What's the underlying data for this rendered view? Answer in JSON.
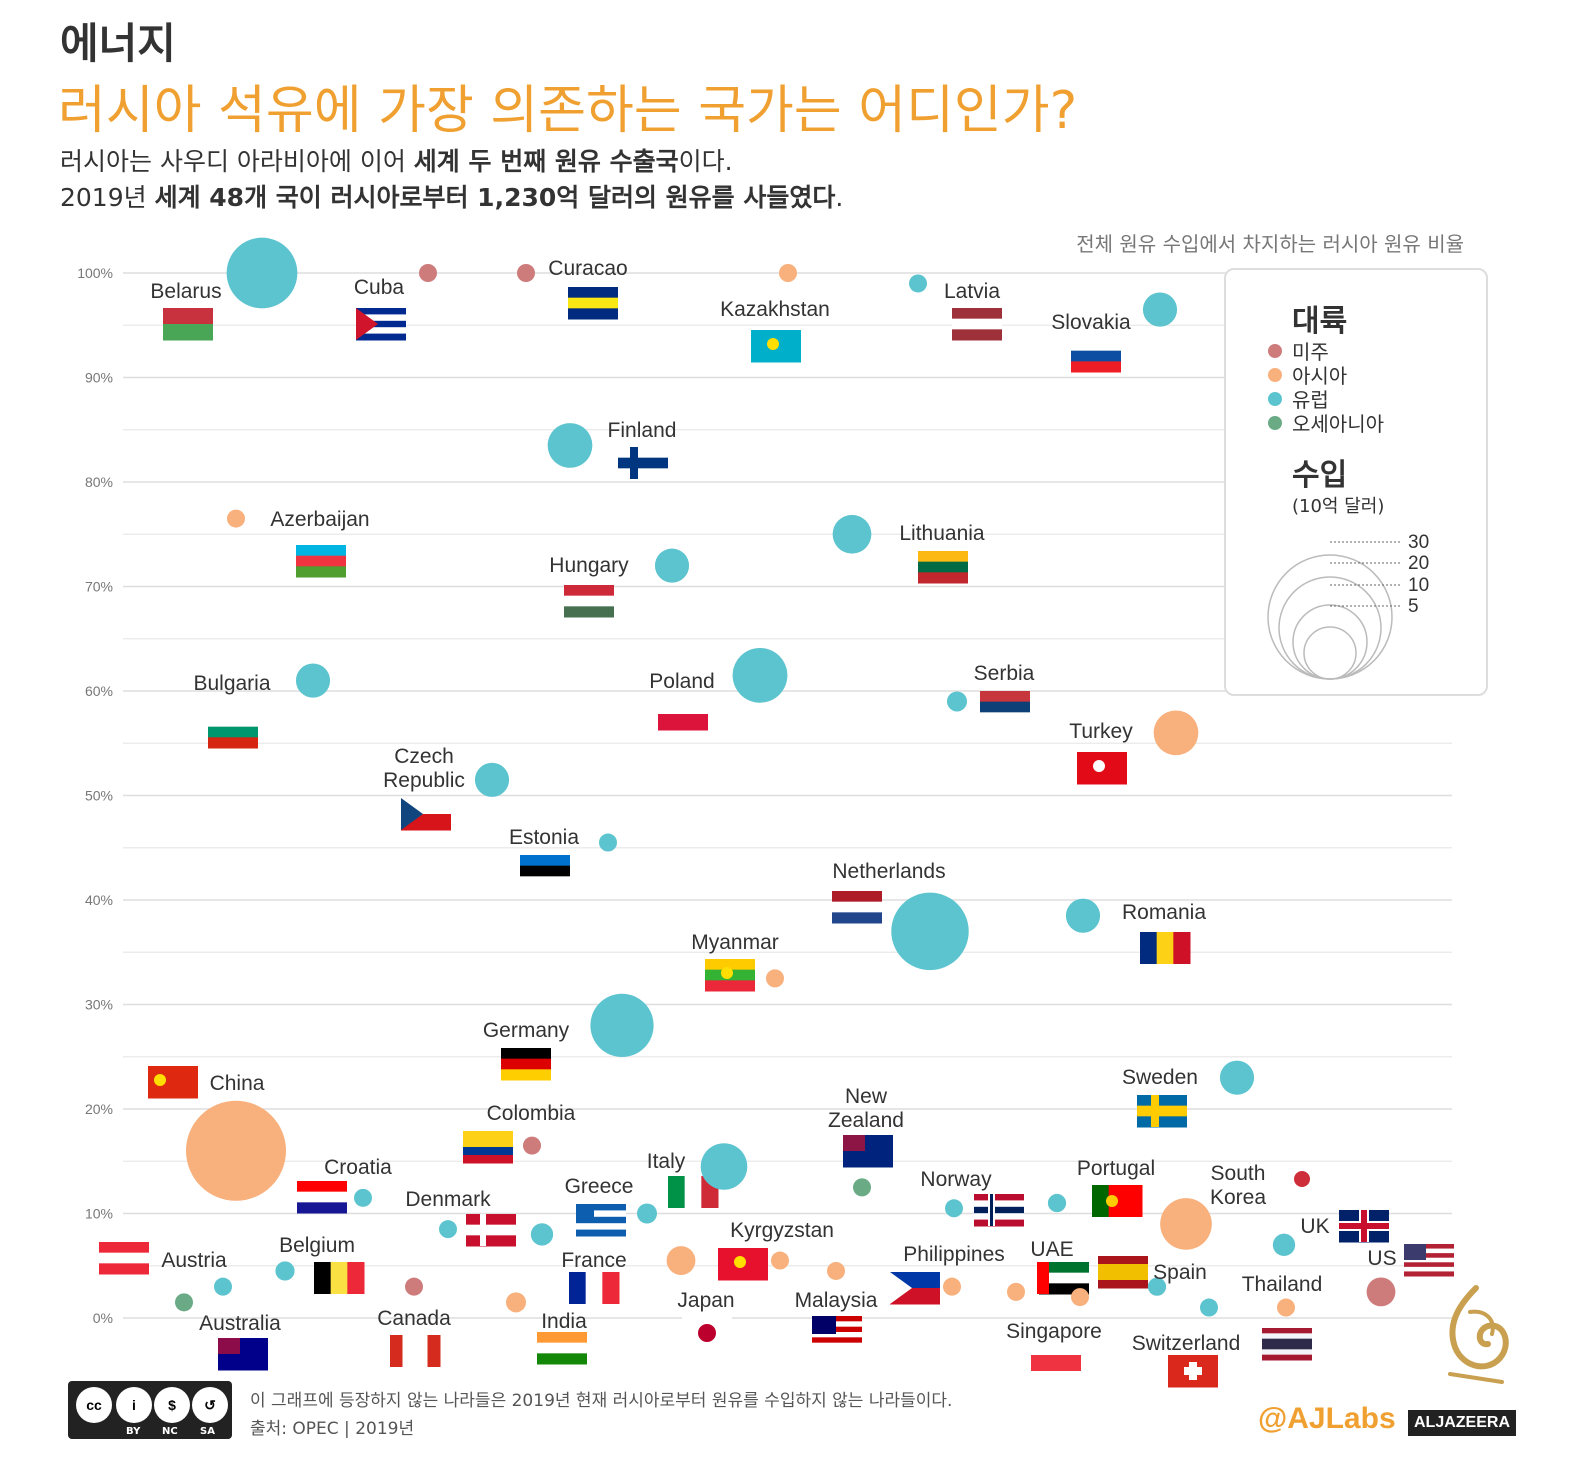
{
  "header": {
    "kicker": "에너지",
    "title": "러시아 석유에 가장 의존하는 국가는 어디인가?",
    "sub1_plain": "러시아는 사우디 아라비아에 이어 ",
    "sub1_bold": "세계 두 번째 원유 수출국",
    "sub1_end": "이다.",
    "sub2_plain": "2019년 ",
    "sub2_bold": "세계 48개 국이 러시아로부터 1,230억 달러의 원유를 사들였다",
    "sub2_end": "."
  },
  "legend": {
    "continent_title": "대륙",
    "continents": [
      {
        "label": "미주",
        "color": "#cd7b7b"
      },
      {
        "label": "아시아",
        "color": "#f8b07d"
      },
      {
        "label": "유럽",
        "color": "#5cc4cf"
      },
      {
        "label": "오세아니아",
        "color": "#6aab86"
      }
    ],
    "size_title": "수입",
    "size_unit": "(10억 달러)",
    "size_ticks": [
      "30",
      "20",
      "10",
      "5"
    ]
  },
  "footer": {
    "note": "이 그래프에 등장하지 않는 나라들은 2019년 현재 러시아로부터 원유를 수입하지 않는 나라들이다.",
    "source": "출처: OPEC | 2019년",
    "handle": "@AJLabs",
    "brand": "ALJAZEERA",
    "license": [
      "BY",
      "NC",
      "SA"
    ]
  },
  "chart_data": {
    "type": "scatter",
    "ylabel": "전체 원유 수입에서 차지하는 러시아 원유 비율",
    "ylim": [
      0,
      100
    ],
    "yticks": [
      "100%",
      "90%",
      "80%",
      "70%",
      "60%",
      "50%",
      "40%",
      "30%",
      "20%",
      "10%",
      "0%"
    ],
    "grid": true,
    "colors": {
      "americas": "#cd7b7b",
      "asia": "#f8b07d",
      "europe": "#5cc4cf",
      "oceania": "#6aab86"
    },
    "points": [
      {
        "name": "Belarus",
        "y": 100,
        "continent": "europe",
        "value": 15
      },
      {
        "name": "Cuba",
        "y": 100,
        "continent": "americas",
        "value": 0.5
      },
      {
        "name": "Curacao",
        "y": 100,
        "continent": "americas",
        "value": 0.5
      },
      {
        "name": "Kazakhstan",
        "y": 100,
        "continent": "asia",
        "value": 0.5
      },
      {
        "name": "Latvia",
        "y": 99,
        "continent": "europe",
        "value": 0.6
      },
      {
        "name": "Slovakia",
        "y": 96.5,
        "continent": "europe",
        "value": 3.5
      },
      {
        "name": "Finland",
        "y": 83.5,
        "continent": "europe",
        "value": 6
      },
      {
        "name": "Azerbaijan",
        "y": 76.5,
        "continent": "asia",
        "value": 0.7
      },
      {
        "name": "Lithuania",
        "y": 75,
        "continent": "europe",
        "value": 4.5
      },
      {
        "name": "Hungary",
        "y": 72,
        "continent": "europe",
        "value": 3.5
      },
      {
        "name": "Bulgaria",
        "y": 61,
        "continent": "europe",
        "value": 3.5
      },
      {
        "name": "Poland",
        "y": 61.5,
        "continent": "europe",
        "value": 9
      },
      {
        "name": "Serbia",
        "y": 59,
        "continent": "europe",
        "value": 1.2
      },
      {
        "name": "Turkey",
        "y": 56,
        "continent": "asia",
        "value": 6
      },
      {
        "name": "Czech Republic",
        "y": 51.5,
        "continent": "europe",
        "value": 3.5
      },
      {
        "name": "Estonia",
        "y": 45.5,
        "continent": "europe",
        "value": 0.5
      },
      {
        "name": "Netherlands",
        "y": 37,
        "continent": "europe",
        "value": 18
      },
      {
        "name": "Romania",
        "y": 38.5,
        "continent": "europe",
        "value": 3.5
      },
      {
        "name": "Myanmar",
        "y": 32.5,
        "continent": "asia",
        "value": 0.6
      },
      {
        "name": "Germany",
        "y": 28,
        "continent": "europe",
        "value": 12
      },
      {
        "name": "China",
        "y": 16,
        "continent": "asia",
        "value": 30
      },
      {
        "name": "Sweden",
        "y": 23,
        "continent": "europe",
        "value": 3.5
      },
      {
        "name": "Colombia",
        "y": 16.5,
        "continent": "americas",
        "value": 0.5
      },
      {
        "name": "New Zealand",
        "y": 12.5,
        "continent": "oceania",
        "value": 0.8
      },
      {
        "name": "Italy",
        "y": 14.5,
        "continent": "europe",
        "value": 6.5
      },
      {
        "name": "Croatia",
        "y": 11.5,
        "continent": "europe",
        "value": 0.6
      },
      {
        "name": "Norway",
        "y": 10.5,
        "continent": "europe",
        "value": 0.7
      },
      {
        "name": "Portugal",
        "y": 11,
        "continent": "europe",
        "value": 1
      },
      {
        "name": "South Korea",
        "y": 9,
        "continent": "asia",
        "value": 8
      },
      {
        "name": "Denmark",
        "y": 8.5,
        "continent": "europe",
        "value": 0.6
      },
      {
        "name": "Greece",
        "y": 10,
        "continent": "europe",
        "value": 1.2
      },
      {
        "name": "UK",
        "y": 7,
        "continent": "europe",
        "value": 1.5
      },
      {
        "name": "France",
        "y": 8,
        "continent": "europe",
        "value": 1.5
      },
      {
        "name": "Kyrgyzstan",
        "y": 5.5,
        "continent": "asia",
        "value": 0.5
      },
      {
        "name": "Austria",
        "y": 3,
        "continent": "europe",
        "value": 0.6
      },
      {
        "name": "Belgium",
        "y": 4.5,
        "continent": "europe",
        "value": 1.1
      },
      {
        "name": "Philippines",
        "y": 3,
        "continent": "asia",
        "value": 0.6
      },
      {
        "name": "UAE",
        "y": 2,
        "continent": "asia",
        "value": 0.6
      },
      {
        "name": "Spain",
        "y": 3,
        "continent": "europe",
        "value": 1
      },
      {
        "name": "Thailand",
        "y": 1,
        "continent": "asia",
        "value": 0.5
      },
      {
        "name": "US",
        "y": 2.5,
        "continent": "americas",
        "value": 2.5
      },
      {
        "name": "Australia",
        "y": 1.5,
        "continent": "oceania",
        "value": 0.6
      },
      {
        "name": "Canada",
        "y": 3,
        "continent": "americas",
        "value": 0.8
      },
      {
        "name": "India",
        "y": 1.5,
        "continent": "asia",
        "value": 1.2
      },
      {
        "name": "Japan",
        "y": 5.5,
        "continent": "asia",
        "value": 2.5
      },
      {
        "name": "Malaysia",
        "y": 4.5,
        "continent": "asia",
        "value": 0.7
      },
      {
        "name": "Singapore",
        "y": 2.5,
        "continent": "asia",
        "value": 0.8
      },
      {
        "name": "Switzerland",
        "y": 1,
        "continent": "europe",
        "value": 0.5
      }
    ]
  }
}
